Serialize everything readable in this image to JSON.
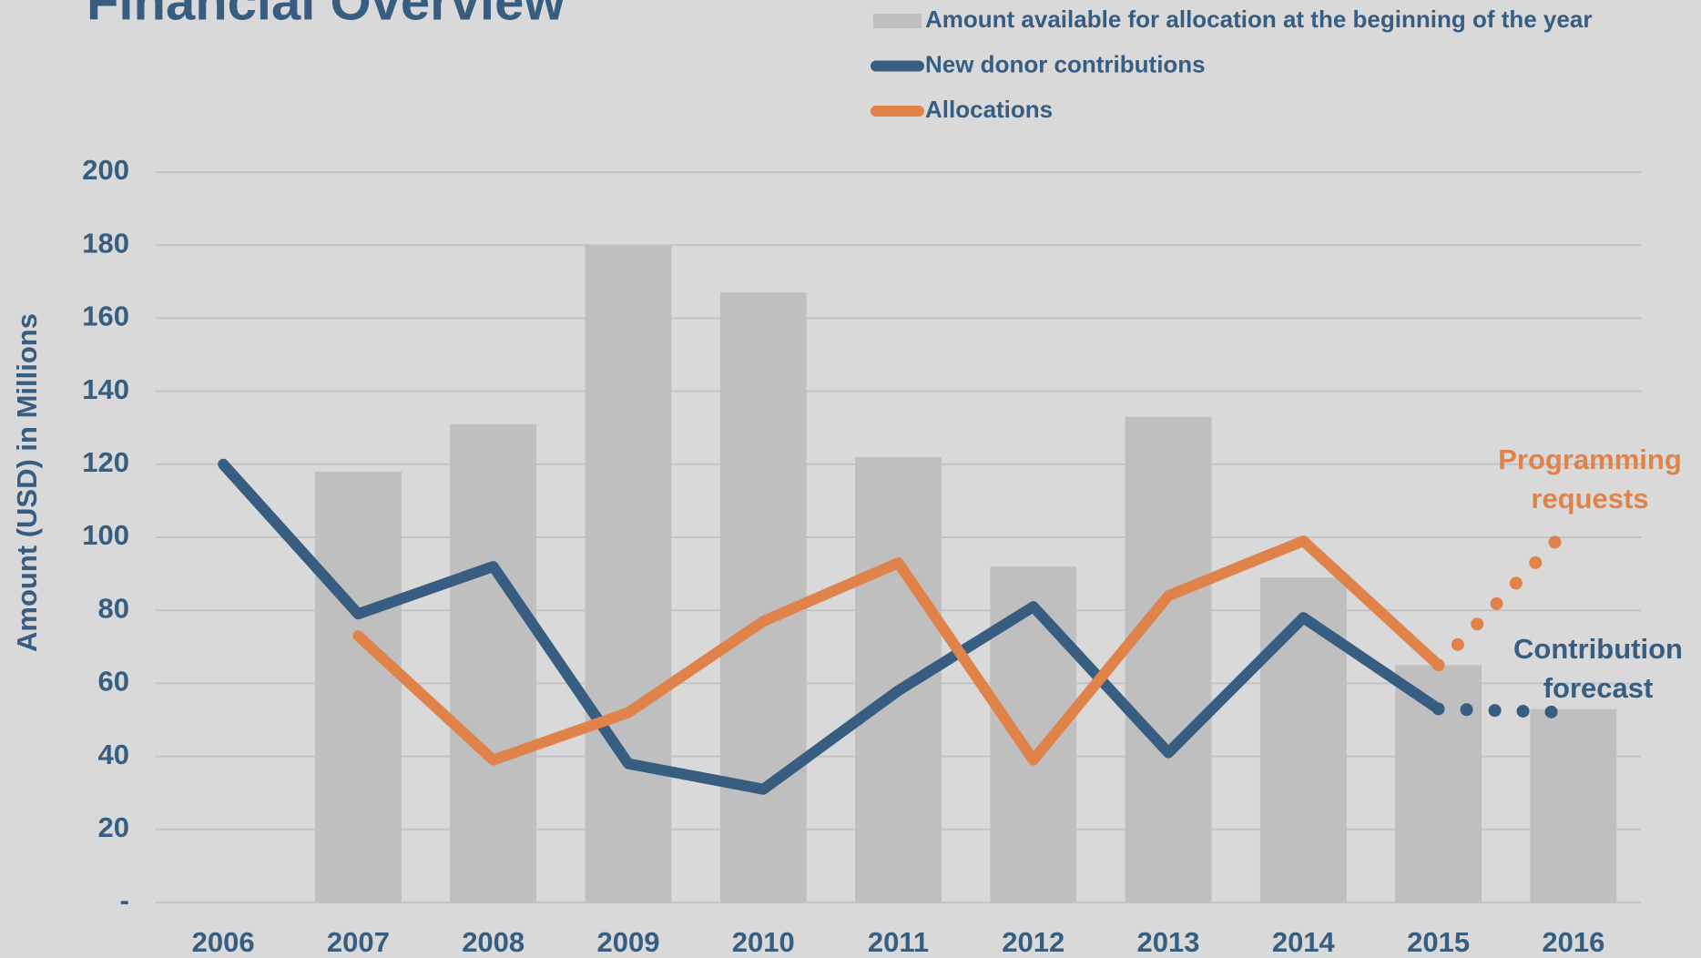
{
  "chart_data": {
    "type": "bar_line",
    "title": "Financial Overview",
    "y_axis_label": "Amount (USD) in Millions",
    "categories": [
      "2006",
      "2007",
      "2008",
      "2009",
      "2010",
      "2011",
      "2012",
      "2013",
      "2014",
      "2015",
      "2016"
    ],
    "series": [
      {
        "name": "Amount available for allocation at the beginning of the year",
        "kind": "bar",
        "color": "#bfbfbf",
        "values": [
          null,
          118,
          131,
          180,
          167,
          122,
          92,
          133,
          89,
          65,
          53
        ]
      },
      {
        "name": "New donor contributions",
        "kind": "line",
        "color": "#375d81",
        "values": [
          120,
          79,
          92,
          38,
          31,
          58,
          81,
          41,
          78,
          53,
          null
        ]
      },
      {
        "name": "Allocations",
        "kind": "line",
        "color": "#e0834a",
        "values": [
          null,
          73,
          39,
          52,
          77,
          93,
          39,
          84,
          99,
          65,
          null
        ]
      }
    ],
    "forecasts": [
      {
        "text": [
          "Programming",
          "requests"
        ],
        "color": "#e0834a",
        "values": [
          null,
          null,
          null,
          null,
          null,
          null,
          null,
          null,
          null,
          65,
          104
        ]
      },
      {
        "text": [
          "Contribution",
          "forecast"
        ],
        "color": "#375d81",
        "values": [
          null,
          null,
          null,
          null,
          null,
          null,
          null,
          null,
          null,
          53,
          52
        ]
      }
    ],
    "ylim": [
      0,
      200
    ],
    "yticks": [
      {
        "value": 0,
        "label": "-"
      },
      20,
      40,
      60,
      80,
      100,
      120,
      140,
      160,
      180,
      200
    ],
    "grid": true,
    "legend": "top-right"
  }
}
